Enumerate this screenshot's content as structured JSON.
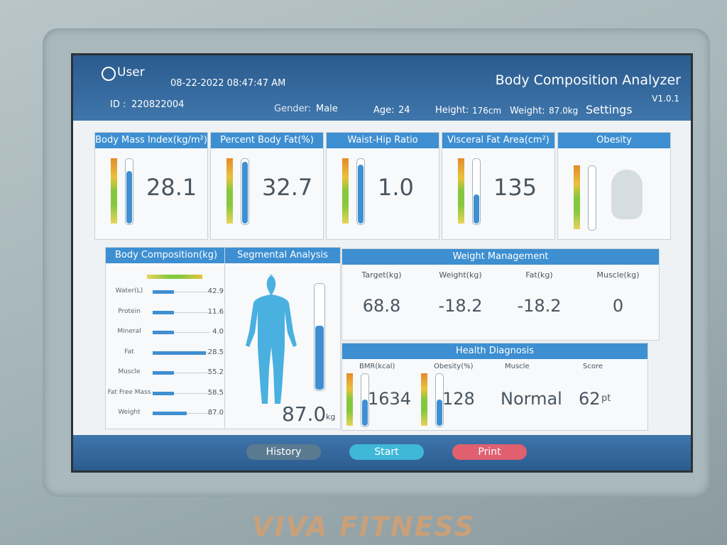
{
  "header": {
    "user": "User",
    "datetime": "08-22-2022 08:47:47 AM",
    "title": "Body Composition Analyzer",
    "version": "V1.0.1",
    "id_label": "ID :",
    "id": "220822004",
    "gender_label": "Gender:",
    "gender": "Male",
    "age_label": "Age:",
    "age": "24",
    "height_label": "Height:",
    "height": "176cm",
    "weight_label": "Weight:",
    "weight": "87.0kg",
    "settings": "Settings"
  },
  "indices": [
    {
      "label": "Body Mass Index(kg/m²)",
      "value": "28.1"
    },
    {
      "label": "Percent Body Fat(%)",
      "value": "32.7"
    },
    {
      "label": "Waist-Hip Ratio",
      "value": "1.0"
    },
    {
      "label": "Visceral Fat Area(cm²)",
      "value": "135"
    },
    {
      "label": "Obesity"
    }
  ],
  "body_composition": {
    "title": "Body Composition(kg)",
    "rows": [
      {
        "label": "Water(L)",
        "value": "42.9"
      },
      {
        "label": "Protein",
        "value": "11.6"
      },
      {
        "label": "Mineral",
        "value": "4.0"
      },
      {
        "label": "Fat",
        "value": "28.5"
      },
      {
        "label": "Muscle",
        "value": "55.2"
      },
      {
        "label": "Fat Free Mass",
        "value": "58.5"
      },
      {
        "label": "Weight",
        "value": "87.0"
      }
    ]
  },
  "segmental": {
    "title": "Segmental Analysis",
    "value": "87.0",
    "unit": "kg"
  },
  "weight_management": {
    "title": "Weight Management",
    "columns": [
      {
        "label": "Target(kg)",
        "value": "68.8"
      },
      {
        "label": "Weight(kg)",
        "value": "-18.2"
      },
      {
        "label": "Fat(kg)",
        "value": "-18.2"
      },
      {
        "label": "Muscle(kg)",
        "value": "0"
      }
    ]
  },
  "health_diagnosis": {
    "title": "Health Diagnosis",
    "columns": [
      {
        "label": "BMR(kcal)",
        "value": "1634"
      },
      {
        "label": "Obesity(%)",
        "value": "128"
      },
      {
        "label": "Muscle",
        "value": "Normal"
      },
      {
        "label": "Score",
        "value": "62",
        "unit": "pt"
      }
    ]
  },
  "buttons": [
    "History",
    "Start",
    "Print"
  ],
  "brand": "VIVA FITNESS"
}
